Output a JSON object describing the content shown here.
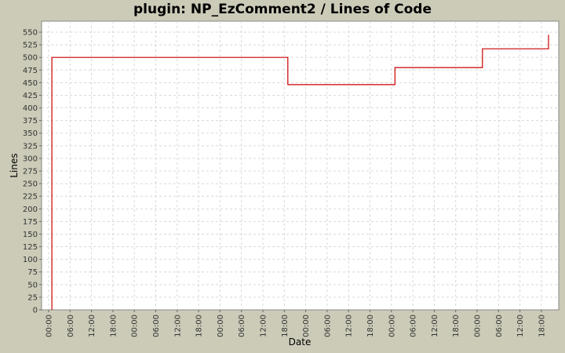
{
  "chart_data": {
    "type": "line",
    "step": true,
    "title": "plugin: NP_EzComment2 / Lines of Code",
    "xlabel": "Date",
    "ylabel": "Lines",
    "ylim": [
      0,
      560
    ],
    "yticks": [
      0,
      25,
      50,
      75,
      100,
      125,
      150,
      175,
      200,
      225,
      250,
      275,
      300,
      325,
      350,
      375,
      400,
      425,
      450,
      475,
      500,
      525,
      550
    ],
    "xtick_labels": [
      "00:00",
      "06:00",
      "12:00",
      "18:00",
      "00:00",
      "06:00",
      "12:00",
      "18:00",
      "00:00",
      "06:00",
      "12:00",
      "18:00",
      "00:00",
      "06:00",
      "12:00",
      "18:00",
      "00:00",
      "06:00",
      "12:00",
      "18:00",
      "00:00",
      "06:00",
      "12:00",
      "18:00"
    ],
    "x_unit": "hours from first 00:00 tick",
    "xlim_hours": [
      -2,
      142
    ],
    "grid": true,
    "legend": null,
    "series": [
      {
        "name": "Lines of Code",
        "color": "#cc0000",
        "points": [
          {
            "x": 0.9,
            "y": 0
          },
          {
            "x": 0.9,
            "y": 500
          },
          {
            "x": 67,
            "y": 500
          },
          {
            "x": 67,
            "y": 446
          },
          {
            "x": 97,
            "y": 446
          },
          {
            "x": 97,
            "y": 480
          },
          {
            "x": 121.5,
            "y": 480
          },
          {
            "x": 121.5,
            "y": 517
          },
          {
            "x": 140,
            "y": 517
          },
          {
            "x": 140,
            "y": 545
          }
        ]
      }
    ]
  },
  "colors": {
    "background": "#cccbb8",
    "plot_background": "#ffffff",
    "grid": "#d8d8d8",
    "series": "#cc0000"
  }
}
